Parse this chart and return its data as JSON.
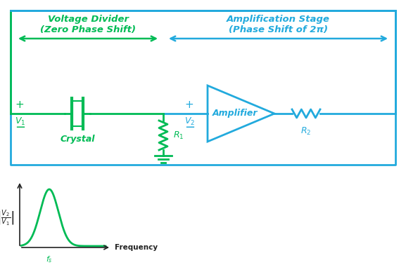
{
  "bg_color": "#ffffff",
  "green": "#00bb55",
  "cyan": "#22aadd",
  "dark": "#222222",
  "title_voltage_divider": "Voltage Divider\n(Zero Phase Shift)",
  "title_amplification": "Amplification Stage\n(Phase Shift of 2π)",
  "label_crystal": "Crystal",
  "label_R1": "$R_1$",
  "label_R2": "$R_2$",
  "label_V1": "$V_1$",
  "label_V2": "$V_2$",
  "label_amplifier": "Amplifier",
  "label_frequency": "Frequency",
  "label_f0": "$f_s$",
  "label_y_axis": "$\\left|\\dfrac{V_2}{V_1}\\right|$",
  "figsize": [
    5.77,
    3.78
  ],
  "dpi": 100
}
